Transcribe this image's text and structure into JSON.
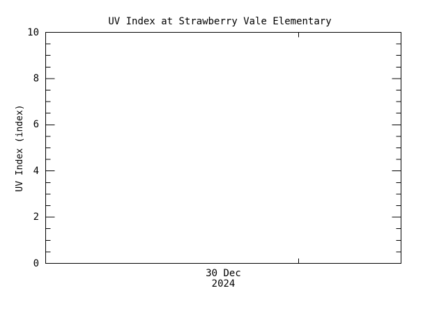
{
  "chart_data": {
    "type": "line",
    "title": "UV Index at Strawberry Vale Elementary",
    "ylabel": "UV Index (index)",
    "ylim": [
      0,
      10
    ],
    "yticks": [
      0,
      2,
      4,
      6,
      8,
      10
    ],
    "ytick_labels": [
      "0",
      "2",
      "4",
      "6",
      "8",
      "10"
    ],
    "y_minor_interval": 0.5,
    "x_axis": {
      "date_label_line1": "30 Dec",
      "date_label_line2": "2024",
      "minor_tick_fractions": [
        0.71
      ]
    },
    "series": [],
    "grid": false,
    "legend": "none",
    "frame_color": "#000000",
    "background_color": "#ffffff"
  }
}
